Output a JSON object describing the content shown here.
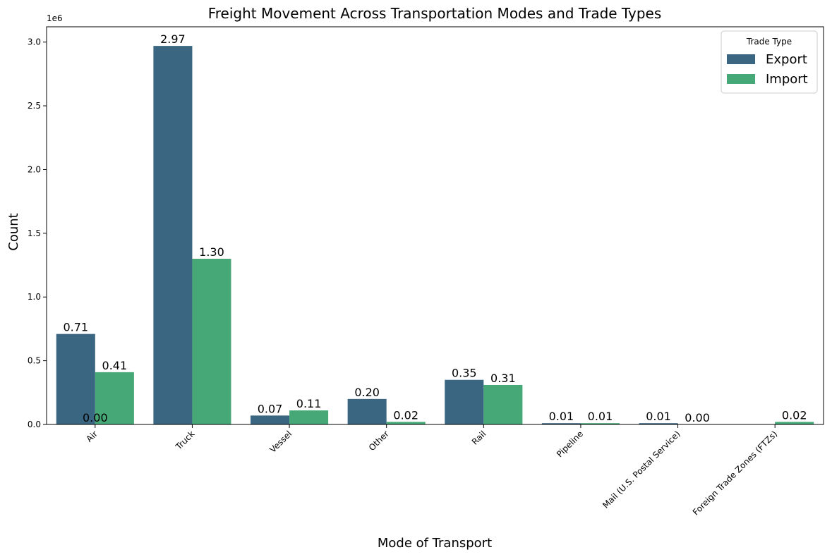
{
  "chart_data": {
    "type": "bar",
    "title": "Freight Movement Across Transportation Modes and Trade Types",
    "xlabel": "Mode of Transport",
    "ylabel": "Count",
    "scale_label": "1e6",
    "categories": [
      "Air",
      "Truck",
      "Vessel",
      "Other",
      "Rail",
      "Pipeline",
      "Mail (U.S. Postal Service)",
      "Foreign Trade Zones (FTZs)"
    ],
    "ylim": [
      0,
      3.12
    ],
    "yticks": [
      "0.0",
      "0.5",
      "1.0",
      "1.5",
      "2.0",
      "2.5",
      "3.0"
    ],
    "legend": {
      "title": "Trade Type",
      "position": "top-right"
    },
    "series": [
      {
        "name": "Export",
        "color": "#3b6682",
        "values": [
          0.71,
          2.97,
          0.07,
          0.2,
          0.35,
          0.01,
          0.01,
          null
        ],
        "labels": [
          "0.71",
          "2.97",
          "0.07",
          "0.20",
          "0.35",
          "0.01",
          "0.01",
          null
        ]
      },
      {
        "name": "Import",
        "color": "#45a876",
        "values": [
          0.41,
          1.3,
          0.11,
          0.02,
          0.31,
          0.01,
          0.0,
          0.02
        ],
        "labels": [
          "0.41",
          "1.30",
          "0.11",
          "0.02",
          "0.31",
          "0.01",
          "0.00",
          "0.02"
        ]
      }
    ],
    "extra_labels": [
      {
        "category": "Air",
        "text": "0.00"
      }
    ]
  }
}
